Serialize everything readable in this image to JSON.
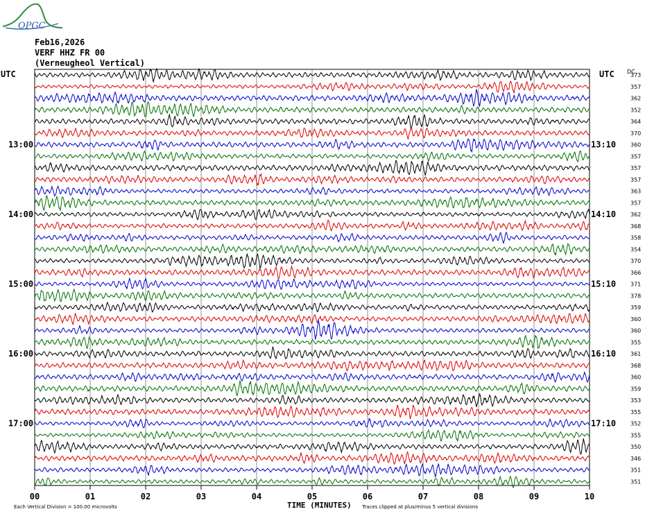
{
  "header": {
    "logo_text": "OPGC",
    "date": "Feb16,2026",
    "station": "VERF HHZ FR 00",
    "location": "(Verneugheol Vertical)"
  },
  "chart_data": {
    "type": "line",
    "title": "Feb16,2026",
    "left_axis_title": "UTC",
    "right_axis_title": "UTC",
    "dc_header": "DC",
    "left_time_labels": [
      {
        "row": 6,
        "label": "13:00"
      },
      {
        "row": 12,
        "label": "14:00"
      },
      {
        "row": 18,
        "label": "15:00"
      },
      {
        "row": 24,
        "label": "16:00"
      },
      {
        "row": 30,
        "label": "17:00"
      }
    ],
    "right_time_labels": [
      {
        "row": 6,
        "label": "13:10"
      },
      {
        "row": 12,
        "label": "14:10"
      },
      {
        "row": 18,
        "label": "15:10"
      },
      {
        "row": 24,
        "label": "16:10"
      },
      {
        "row": 30,
        "label": "17:10"
      }
    ],
    "trace_colors": [
      "#000000",
      "#e00000",
      "#0000d0",
      "#007000"
    ],
    "dc_values": [
      373,
      357,
      362,
      352,
      364,
      370,
      360,
      357,
      357,
      357,
      363,
      357,
      362,
      368,
      358,
      354,
      370,
      366,
      371,
      378,
      359,
      360,
      360,
      355,
      361,
      368,
      360,
      359,
      353,
      355,
      352,
      355,
      350,
      346,
      351,
      351
    ],
    "x_ticks": [
      "00",
      "01",
      "02",
      "03",
      "04",
      "05",
      "06",
      "07",
      "08",
      "09",
      "10"
    ],
    "xlabel": "TIME (MINUTES)",
    "xlim": [
      0,
      10
    ],
    "grid": true,
    "footer_left": "Each Vertical Division =  100.00 microvolts",
    "footer_right": "Traces clipped at plus/minus 5 vertical divisions"
  }
}
